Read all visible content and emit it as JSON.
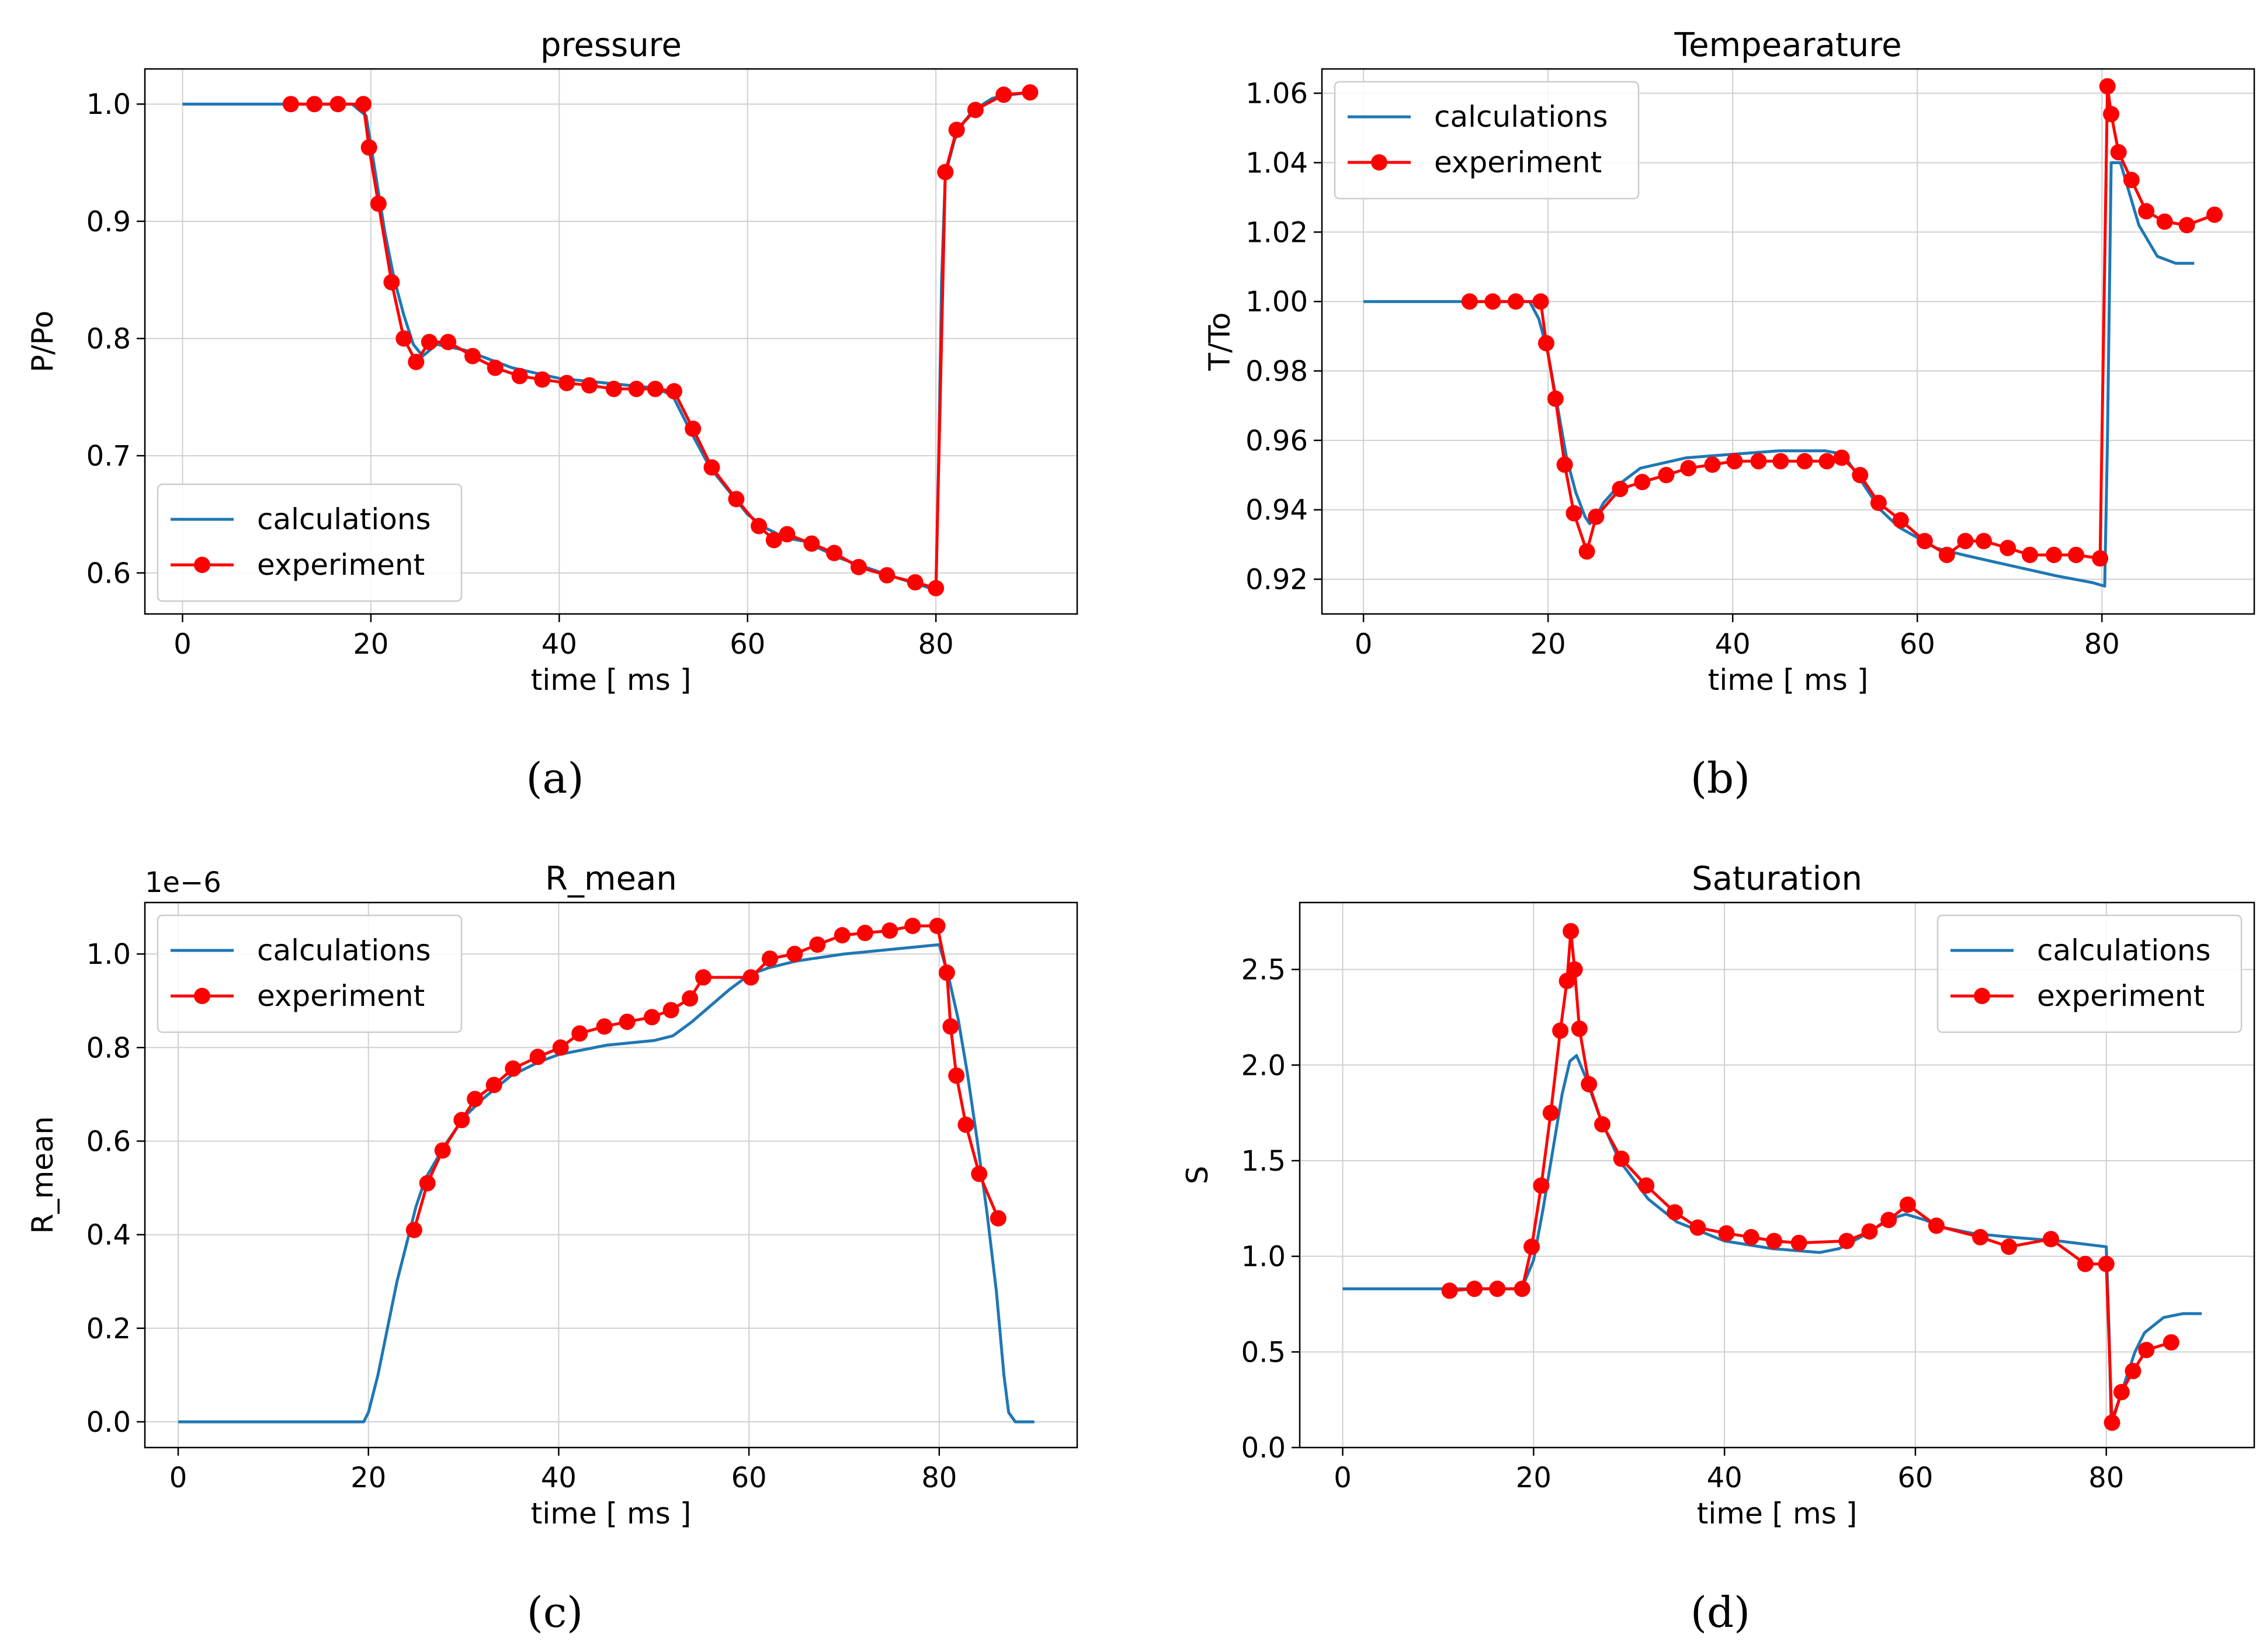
{
  "figure": {
    "colors": {
      "calculations": "#1f77b4",
      "experiment": "#ff0000",
      "grid": "#d0d0d0",
      "axes": "#000000"
    }
  },
  "chart_data": [
    {
      "id": "a",
      "panel_label": "(a)",
      "type": "line",
      "title": "pressure",
      "xlabel": "time [ ms ]",
      "ylabel": "P/Po",
      "offset_text": "",
      "xlim": [
        -4,
        95
      ],
      "ylim": [
        0.565,
        1.03
      ],
      "xticks": [
        0,
        20,
        40,
        60,
        80
      ],
      "xtick_labels": [
        "0",
        "20",
        "40",
        "60",
        "80"
      ],
      "yticks": [
        0.6,
        0.7,
        0.8,
        0.9,
        1.0
      ],
      "ytick_labels": [
        "0.6",
        "0.7",
        "0.8",
        "0.9",
        "1.0"
      ],
      "legend": {
        "position": "lower-left",
        "entries": [
          "calculations",
          "experiment"
        ]
      },
      "series": [
        {
          "name": "calculations",
          "style": "line",
          "x": [
            0,
            18,
            19.5,
            20.5,
            21.5,
            22.5,
            23.5,
            24.5,
            25.5,
            27,
            30,
            35,
            40,
            45,
            50,
            52,
            54,
            56,
            58,
            60,
            62,
            64,
            66,
            70,
            75,
            79,
            80,
            80.3,
            80.6,
            81,
            82,
            83,
            84,
            85,
            86,
            88,
            90
          ],
          "y": [
            1.0,
            1.0,
            0.99,
            0.94,
            0.89,
            0.85,
            0.82,
            0.795,
            0.785,
            0.795,
            0.79,
            0.775,
            0.766,
            0.762,
            0.758,
            0.752,
            0.72,
            0.69,
            0.67,
            0.65,
            0.638,
            0.63,
            0.627,
            0.612,
            0.598,
            0.588,
            0.585,
            0.7,
            0.85,
            0.94,
            0.97,
            0.985,
            0.995,
            1.0,
            1.005,
            1.008,
            1.01
          ]
        },
        {
          "name": "experiment",
          "style": "line-marker",
          "x": [
            11.5,
            14,
            16.5,
            19.2,
            19.8,
            20.8,
            22.2,
            23.5,
            24.8,
            26.2,
            28.2,
            30.8,
            33.2,
            35.8,
            38.2,
            40.8,
            43.2,
            45.8,
            48.2,
            50.2,
            52.2,
            54.2,
            56.2,
            58.8,
            61.2,
            62.8,
            64.2,
            66.8,
            69.2,
            71.8,
            74.8,
            77.8,
            80,
            81,
            82.2,
            84.2,
            87.2,
            90
          ],
          "y": [
            1.0,
            1.0,
            1.0,
            1.0,
            0.963,
            0.915,
            0.848,
            0.8,
            0.78,
            0.797,
            0.797,
            0.785,
            0.775,
            0.768,
            0.765,
            0.762,
            0.76,
            0.757,
            0.757,
            0.757,
            0.755,
            0.723,
            0.69,
            0.663,
            0.64,
            0.628,
            0.633,
            0.625,
            0.617,
            0.605,
            0.598,
            0.592,
            0.587,
            0.942,
            0.978,
            0.995,
            1.008,
            1.01
          ]
        }
      ]
    },
    {
      "id": "b",
      "panel_label": "(b)",
      "type": "line",
      "title": "Tempearature",
      "xlabel": "time [ ms ]",
      "ylabel": "T/To",
      "offset_text": "",
      "xlim": [
        -4.5,
        96.5
      ],
      "ylim": [
        0.91,
        1.067
      ],
      "xticks": [
        0,
        20,
        40,
        60,
        80
      ],
      "xtick_labels": [
        "0",
        "20",
        "40",
        "60",
        "80"
      ],
      "yticks": [
        0.92,
        0.94,
        0.96,
        0.98,
        1.0,
        1.02,
        1.04,
        1.06
      ],
      "ytick_labels": [
        "0.92",
        "0.94",
        "0.96",
        "0.98",
        "1.00",
        "1.02",
        "1.04",
        "1.06"
      ],
      "legend": {
        "position": "upper-left",
        "entries": [
          "calculations",
          "experiment"
        ]
      },
      "series": [
        {
          "name": "calculations",
          "style": "line",
          "x": [
            0,
            18,
            19,
            20,
            21,
            22,
            23,
            24,
            24.5,
            25,
            26,
            28,
            30,
            35,
            40,
            45,
            50,
            52,
            54,
            56,
            58,
            60,
            62,
            65,
            70,
            75,
            79,
            80.3,
            80.6,
            81,
            82,
            84,
            86,
            88,
            90
          ],
          "y": [
            1.0,
            1.0,
            0.995,
            0.985,
            0.97,
            0.955,
            0.945,
            0.938,
            0.936,
            0.937,
            0.942,
            0.948,
            0.952,
            0.955,
            0.956,
            0.957,
            0.957,
            0.956,
            0.948,
            0.94,
            0.935,
            0.932,
            0.929,
            0.927,
            0.924,
            0.921,
            0.919,
            0.918,
            0.96,
            1.04,
            1.04,
            1.022,
            1.013,
            1.011,
            1.011
          ]
        },
        {
          "name": "experiment",
          "style": "line-marker",
          "x": [
            11.5,
            14,
            16.5,
            19.2,
            19.8,
            20.8,
            21.8,
            22.8,
            24.2,
            25.2,
            27.8,
            30.2,
            32.8,
            35.2,
            37.8,
            40.2,
            42.8,
            45.2,
            47.8,
            50.2,
            51.8,
            53.8,
            55.8,
            58.2,
            60.8,
            63.2,
            65.2,
            67.2,
            69.8,
            72.2,
            74.8,
            77.2,
            79.8,
            80.6,
            81,
            81.8,
            83.2,
            84.8,
            86.8,
            89.2,
            92.2
          ],
          "y": [
            1.0,
            1.0,
            1.0,
            1.0,
            0.988,
            0.972,
            0.953,
            0.939,
            0.928,
            0.938,
            0.946,
            0.948,
            0.95,
            0.952,
            0.953,
            0.954,
            0.954,
            0.954,
            0.954,
            0.954,
            0.955,
            0.95,
            0.942,
            0.937,
            0.931,
            0.927,
            0.931,
            0.931,
            0.929,
            0.927,
            0.927,
            0.927,
            0.926,
            1.062,
            1.054,
            1.043,
            1.035,
            1.026,
            1.023,
            1.022,
            1.025
          ]
        }
      ]
    },
    {
      "id": "c",
      "panel_label": "(c)",
      "type": "line",
      "title": "R_mean",
      "xlabel": "time [ ms ]",
      "ylabel": "R_mean",
      "offset_text": "1e−6",
      "xlim": [
        -3.5,
        94.5
      ],
      "ylim": [
        -0.055,
        1.11
      ],
      "xticks": [
        0,
        20,
        40,
        60,
        80
      ],
      "xtick_labels": [
        "0",
        "20",
        "40",
        "60",
        "80"
      ],
      "yticks": [
        0.0,
        0.2,
        0.4,
        0.6,
        0.8,
        1.0
      ],
      "ytick_labels": [
        "0.0",
        "0.2",
        "0.4",
        "0.6",
        "0.8",
        "1.0"
      ],
      "legend": {
        "position": "upper-left",
        "entries": [
          "calculations",
          "experiment"
        ]
      },
      "series": [
        {
          "name": "calculations",
          "style": "line",
          "x": [
            0,
            19.5,
            20,
            21,
            22,
            23,
            24,
            25,
            26,
            28,
            30,
            32,
            35,
            38,
            40,
            45,
            50,
            52,
            54,
            56,
            58,
            60,
            62,
            65,
            70,
            75,
            80,
            81,
            82,
            83,
            84,
            85,
            86,
            86.8,
            87.3,
            88,
            90
          ],
          "y": [
            0.0,
            0.0,
            0.02,
            0.1,
            0.2,
            0.3,
            0.38,
            0.46,
            0.52,
            0.59,
            0.65,
            0.69,
            0.74,
            0.77,
            0.785,
            0.805,
            0.815,
            0.825,
            0.855,
            0.89,
            0.925,
            0.955,
            0.97,
            0.985,
            1.0,
            1.01,
            1.02,
            0.95,
            0.86,
            0.74,
            0.6,
            0.45,
            0.28,
            0.1,
            0.02,
            0.0,
            0.0
          ]
        },
        {
          "name": "experiment",
          "style": "line-marker",
          "x": [
            24.8,
            26.2,
            27.8,
            29.8,
            31.2,
            33.2,
            35.2,
            37.8,
            40.2,
            42.2,
            44.8,
            47.2,
            49.8,
            51.8,
            53.8,
            55.2,
            60.2,
            62.2,
            64.8,
            67.2,
            69.8,
            72.2,
            74.8,
            77.2,
            79.8,
            80.8,
            81.2,
            81.8,
            82.8,
            84.2,
            86.2
          ],
          "y": [
            0.41,
            0.51,
            0.58,
            0.645,
            0.69,
            0.72,
            0.755,
            0.78,
            0.8,
            0.83,
            0.845,
            0.855,
            0.865,
            0.88,
            0.905,
            0.95,
            0.95,
            0.99,
            1.0,
            1.02,
            1.04,
            1.045,
            1.05,
            1.06,
            1.06,
            0.96,
            0.845,
            0.74,
            0.635,
            0.53,
            0.435
          ]
        }
      ]
    },
    {
      "id": "d",
      "panel_label": "(d)",
      "type": "line",
      "title": "Saturation",
      "xlabel": "time [ ms ]",
      "ylabel": "S",
      "offset_text": "",
      "xlim": [
        -4.5,
        95.5
      ],
      "ylim": [
        0.0,
        2.85
      ],
      "xticks": [
        0,
        20,
        40,
        60,
        80
      ],
      "xtick_labels": [
        "0",
        "20",
        "40",
        "60",
        "80"
      ],
      "yticks": [
        0.0,
        0.5,
        1.0,
        1.5,
        2.0,
        2.5
      ],
      "ytick_labels": [
        "0.0",
        "0.5",
        "1.0",
        "1.5",
        "2.0",
        "2.5"
      ],
      "legend": {
        "position": "upper-right",
        "entries": [
          "calculations",
          "experiment"
        ]
      },
      "series": [
        {
          "name": "calculations",
          "style": "line",
          "x": [
            0,
            18,
            19,
            20,
            21,
            22,
            23,
            23.8,
            24.5,
            25.5,
            27,
            29,
            32,
            35,
            40,
            45,
            50,
            52,
            55,
            57,
            59,
            61,
            63,
            66,
            70,
            75,
            80,
            80.3,
            80.5,
            81,
            82,
            83,
            84,
            86,
            88,
            90
          ],
          "y": [
            0.83,
            0.83,
            0.86,
            0.98,
            1.25,
            1.55,
            1.85,
            2.02,
            2.05,
            1.93,
            1.72,
            1.5,
            1.3,
            1.18,
            1.08,
            1.04,
            1.02,
            1.04,
            1.12,
            1.19,
            1.22,
            1.19,
            1.15,
            1.12,
            1.1,
            1.08,
            1.05,
            0.6,
            0.15,
            0.2,
            0.35,
            0.5,
            0.6,
            0.68,
            0.7,
            0.7
          ]
        },
        {
          "name": "experiment",
          "style": "line-marker",
          "x": [
            11.2,
            13.8,
            16.2,
            18.8,
            19.8,
            20.8,
            21.8,
            22.8,
            23.5,
            23.9,
            24.3,
            24.8,
            25.8,
            27.2,
            29.2,
            31.8,
            34.8,
            37.2,
            40.2,
            42.8,
            45.2,
            47.8,
            52.8,
            55.2,
            57.2,
            59.2,
            62.2,
            66.8,
            69.8,
            74.2,
            77.8,
            80,
            80.6,
            81.6,
            82.8,
            84.2,
            86.8
          ],
          "y": [
            0.82,
            0.83,
            0.83,
            0.83,
            1.05,
            1.37,
            1.75,
            2.18,
            2.44,
            2.7,
            2.5,
            2.19,
            1.9,
            1.69,
            1.51,
            1.37,
            1.23,
            1.15,
            1.12,
            1.1,
            1.08,
            1.07,
            1.08,
            1.13,
            1.19,
            1.27,
            1.16,
            1.1,
            1.05,
            1.09,
            0.96,
            0.96,
            0.13,
            0.29,
            0.4,
            0.51,
            0.55
          ]
        }
      ]
    }
  ]
}
